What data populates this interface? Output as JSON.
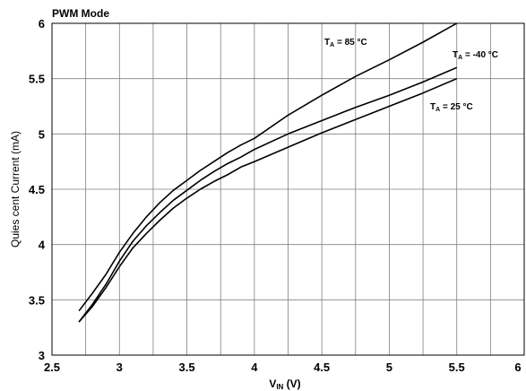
{
  "chart_data": {
    "type": "line",
    "title": "PWM Mode",
    "xlabel": {
      "main": "V",
      "sub": "IN",
      "unit": " (V)"
    },
    "ylabel": "Quies cent Current (mA)",
    "xlim": [
      2.5,
      6
    ],
    "ylim": [
      3,
      6
    ],
    "xticks": [
      "2.5",
      "3",
      "3.5",
      "4",
      "4.5",
      "5",
      "5.5",
      "6"
    ],
    "yticks": [
      "3",
      "3.5",
      "4",
      "4.5",
      "5",
      "5.5",
      "6"
    ],
    "grid": true,
    "series": [
      {
        "name": "85 °C",
        "label": {
          "main": "T",
          "sub": "A",
          "rest": " = 85 °C"
        },
        "x": [
          2.7,
          2.8,
          2.9,
          3.0,
          3.1,
          3.2,
          3.3,
          3.4,
          3.5,
          3.6,
          3.7,
          3.8,
          3.9,
          4.0,
          4.25,
          4.5,
          4.75,
          5.0,
          5.25,
          5.5
        ],
        "y": [
          3.4,
          3.56,
          3.73,
          3.93,
          4.1,
          4.25,
          4.38,
          4.49,
          4.58,
          4.67,
          4.75,
          4.83,
          4.9,
          4.96,
          5.17,
          5.35,
          5.52,
          5.67,
          5.83,
          6.0
        ]
      },
      {
        "name": "-40 °C",
        "label": {
          "main": "T",
          "sub": "A",
          "rest": " = -40 °C"
        },
        "x": [
          2.7,
          2.8,
          2.9,
          3.0,
          3.1,
          3.2,
          3.3,
          3.4,
          3.5,
          3.6,
          3.7,
          3.8,
          3.9,
          4.0,
          4.25,
          4.5,
          4.75,
          5.0,
          5.25,
          5.5
        ],
        "y": [
          3.3,
          3.46,
          3.64,
          3.85,
          4.03,
          4.17,
          4.29,
          4.4,
          4.49,
          4.58,
          4.66,
          4.73,
          4.79,
          4.86,
          5.0,
          5.12,
          5.24,
          5.35,
          5.47,
          5.6
        ]
      },
      {
        "name": "25 °C",
        "label": {
          "main": "T",
          "sub": "A",
          "rest": " = 25 °C"
        },
        "x": [
          2.7,
          2.8,
          2.9,
          3.0,
          3.1,
          3.2,
          3.3,
          3.4,
          3.5,
          3.6,
          3.7,
          3.8,
          3.9,
          4.0,
          4.25,
          4.5,
          4.75,
          5.0,
          5.25,
          5.5
        ],
        "y": [
          3.3,
          3.44,
          3.61,
          3.8,
          3.97,
          4.1,
          4.22,
          4.33,
          4.42,
          4.5,
          4.57,
          4.63,
          4.7,
          4.75,
          4.88,
          5.01,
          5.13,
          5.25,
          5.37,
          5.5
        ]
      }
    ]
  }
}
